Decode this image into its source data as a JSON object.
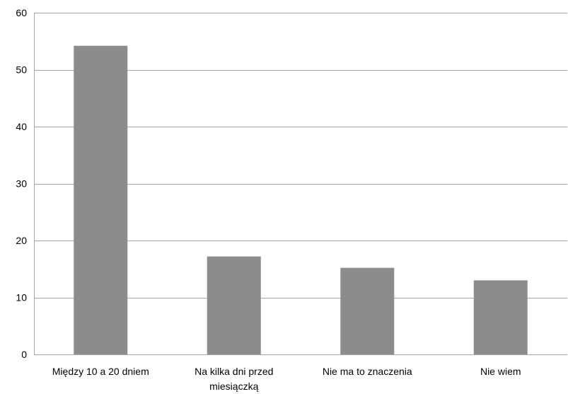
{
  "chart_data": {
    "type": "bar",
    "title": "",
    "xlabel": "",
    "ylabel": "",
    "categories": [
      "Między 10 a 20 dniem",
      "Na kilka dni przed miesiączką",
      "Nie ma to znaczenia",
      "Nie wiem"
    ],
    "category_lines": [
      [
        "Między 10 a 20 dniem"
      ],
      [
        "Na kilka dni przed",
        "miesiączką"
      ],
      [
        "Nie ma to znaczenia"
      ],
      [
        "Nie wiem"
      ]
    ],
    "values": [
      54.2,
      17.2,
      15.2,
      13.0
    ],
    "ylim": [
      0,
      60
    ],
    "yticks": [
      0,
      10,
      20,
      30,
      40,
      50,
      60
    ],
    "grid": true,
    "legend": "none",
    "bar_color": "#8c8c8c",
    "grid_color": "#a6a6a6"
  }
}
